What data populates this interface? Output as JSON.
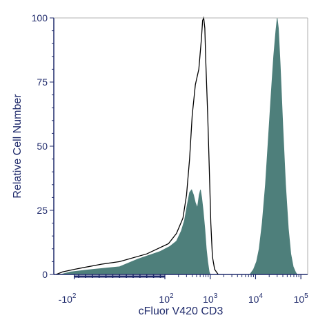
{
  "chart_data": {
    "type": "histogram",
    "xlabel": "cFluor V420 CD3",
    "ylabel": "Relative Cell Number",
    "x_scale": "biexponential",
    "ylim": [
      0,
      100
    ],
    "y_ticks": [
      {
        "value": 0,
        "label": "0"
      },
      {
        "value": 25,
        "label": "25"
      },
      {
        "value": 50,
        "label": "50"
      },
      {
        "value": 75,
        "label": "75"
      },
      {
        "value": 100,
        "label": "100"
      }
    ],
    "x_ticks": [
      {
        "value": -100,
        "base": "-10",
        "exp": "2"
      },
      {
        "value": 100,
        "base": "10",
        "exp": "2"
      },
      {
        "value": 1000,
        "base": "10",
        "exp": "3"
      },
      {
        "value": 10000,
        "base": "10",
        "exp": "4"
      },
      {
        "value": 100000,
        "base": "10",
        "exp": "5"
      }
    ],
    "colors": {
      "axis": "#1f2a6b",
      "stained_fill": "#4e7f7b",
      "control_line": "#000000"
    },
    "series": [
      {
        "style": "outline",
        "points": [
          [
            -250,
            0
          ],
          [
            -180,
            1
          ],
          [
            -100,
            2
          ],
          [
            -40,
            4
          ],
          [
            0,
            5
          ],
          [
            60,
            8
          ],
          [
            120,
            12
          ],
          [
            180,
            16
          ],
          [
            250,
            22
          ],
          [
            300,
            31
          ],
          [
            350,
            45
          ],
          [
            400,
            62
          ],
          [
            470,
            74
          ],
          [
            560,
            80
          ],
          [
            640,
            92
          ],
          [
            680,
            99
          ],
          [
            720,
            100
          ],
          [
            760,
            96
          ],
          [
            800,
            83
          ],
          [
            880,
            62
          ],
          [
            950,
            42
          ],
          [
            1030,
            20
          ],
          [
            1120,
            7
          ],
          [
            1250,
            2
          ],
          [
            1500,
            0
          ]
        ]
      },
      {
        "style": "filled",
        "points": [
          [
            -200,
            0
          ],
          [
            -120,
            1
          ],
          [
            -60,
            2
          ],
          [
            0,
            3
          ],
          [
            40,
            6
          ],
          [
            90,
            9
          ],
          [
            130,
            11
          ],
          [
            180,
            13
          ],
          [
            230,
            17
          ],
          [
            270,
            21
          ],
          [
            310,
            27
          ],
          [
            350,
            32
          ],
          [
            390,
            33
          ],
          [
            430,
            31
          ],
          [
            470,
            28
          ],
          [
            520,
            26
          ],
          [
            570,
            31
          ],
          [
            610,
            33
          ],
          [
            650,
            30
          ],
          [
            700,
            25
          ],
          [
            760,
            18
          ],
          [
            820,
            10
          ],
          [
            880,
            5
          ],
          [
            950,
            1
          ],
          [
            1000,
            0
          ]
        ]
      },
      {
        "style": "filled",
        "points": [
          [
            7500,
            0
          ],
          [
            9000,
            2
          ],
          [
            10500,
            5
          ],
          [
            12000,
            10
          ],
          [
            14000,
            20
          ],
          [
            16500,
            35
          ],
          [
            19000,
            52
          ],
          [
            22000,
            70
          ],
          [
            25000,
            85
          ],
          [
            28000,
            95
          ],
          [
            30000,
            100
          ],
          [
            32000,
            96
          ],
          [
            35000,
            82
          ],
          [
            40000,
            58
          ],
          [
            46000,
            35
          ],
          [
            53000,
            18
          ],
          [
            60000,
            8
          ],
          [
            68000,
            3
          ],
          [
            76000,
            1
          ],
          [
            82000,
            0
          ]
        ]
      }
    ]
  }
}
